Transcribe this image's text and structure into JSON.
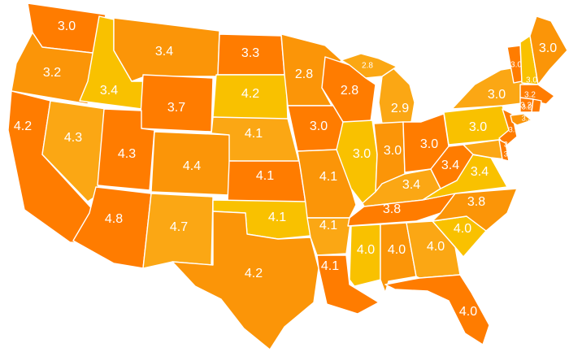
{
  "palette": {
    "tier_1": "#f9c100",
    "tier_2": "#fba714",
    "tier_3": "#fb9508",
    "tier_4": "#ff7c00"
  },
  "states": [
    {
      "id": "wa",
      "value": "3.0",
      "tier": "tier_4"
    },
    {
      "id": "or",
      "value": "3.2",
      "tier": "tier_3"
    },
    {
      "id": "ca",
      "value": "4.2",
      "tier": "tier_4"
    },
    {
      "id": "id",
      "value": "3.4",
      "tier": "tier_1"
    },
    {
      "id": "nv",
      "value": "4.3",
      "tier": "tier_2"
    },
    {
      "id": "mt",
      "value": "3.4",
      "tier": "tier_3"
    },
    {
      "id": "wy",
      "value": "3.7",
      "tier": "tier_4"
    },
    {
      "id": "ut",
      "value": "4.3",
      "tier": "tier_4"
    },
    {
      "id": "co",
      "value": "4.4",
      "tier": "tier_3"
    },
    {
      "id": "az",
      "value": "4.8",
      "tier": "tier_4"
    },
    {
      "id": "nm",
      "value": "4.7",
      "tier": "tier_2"
    },
    {
      "id": "nd",
      "value": "3.3",
      "tier": "tier_4"
    },
    {
      "id": "sd",
      "value": "4.2",
      "tier": "tier_1"
    },
    {
      "id": "ne",
      "value": "4.1",
      "tier": "tier_2"
    },
    {
      "id": "ks",
      "value": "4.1",
      "tier": "tier_4"
    },
    {
      "id": "ok",
      "value": "4.1",
      "tier": "tier_1"
    },
    {
      "id": "tx",
      "value": "4.2",
      "tier": "tier_3"
    },
    {
      "id": "mn",
      "value": "2.8",
      "tier": "tier_3"
    },
    {
      "id": "ia",
      "value": "3.0",
      "tier": "tier_4"
    },
    {
      "id": "mo",
      "value": "4.1",
      "tier": "tier_3"
    },
    {
      "id": "ar",
      "value": "4.1",
      "tier": "tier_2"
    },
    {
      "id": "la",
      "value": "4.1",
      "tier": "tier_4"
    },
    {
      "id": "wi",
      "value": "2.8",
      "tier": "tier_4"
    },
    {
      "id": "il",
      "value": "3.0",
      "tier": "tier_1"
    },
    {
      "id": "mi",
      "value": "2.9",
      "tier": "tier_2"
    },
    {
      "id": "in",
      "value": "3.0",
      "tier": "tier_3"
    },
    {
      "id": "oh",
      "value": "3.0",
      "tier": "tier_4"
    },
    {
      "id": "ky",
      "value": "3.4",
      "tier": "tier_2"
    },
    {
      "id": "tn",
      "value": "3.8",
      "tier": "tier_4"
    },
    {
      "id": "ms",
      "value": "4.0",
      "tier": "tier_1"
    },
    {
      "id": "al",
      "value": "4.0",
      "tier": "tier_3"
    },
    {
      "id": "ga",
      "value": "4.0",
      "tier": "tier_2"
    },
    {
      "id": "fl",
      "value": "4.0",
      "tier": "tier_4"
    },
    {
      "id": "sc",
      "value": "4.0",
      "tier": "tier_1"
    },
    {
      "id": "nc",
      "value": "3.8",
      "tier": "tier_3"
    },
    {
      "id": "va",
      "value": "3.4",
      "tier": "tier_1"
    },
    {
      "id": "wv",
      "value": "3.4",
      "tier": "tier_4"
    },
    {
      "id": "pa",
      "value": "3.0",
      "tier": "tier_1"
    },
    {
      "id": "ny",
      "value": "3.0",
      "tier": "tier_2"
    },
    {
      "id": "nj",
      "value": "3.3",
      "tier": "tier_4"
    },
    {
      "id": "md",
      "value": "3.4",
      "tier": "tier_2"
    },
    {
      "id": "de",
      "value": "3.4",
      "tier": "tier_4"
    },
    {
      "id": "vt",
      "value": "3.0",
      "tier": "tier_4"
    },
    {
      "id": "nh",
      "value": "3.0",
      "tier": "tier_1"
    },
    {
      "id": "me",
      "value": "3.0",
      "tier": "tier_3"
    },
    {
      "id": "ma",
      "value": "3.2",
      "tier": "tier_4"
    },
    {
      "id": "ct",
      "value": "3.2",
      "tier": "tier_4"
    },
    {
      "id": "ri",
      "value": "3.2",
      "tier": "tier_4"
    },
    {
      "id": "nyc",
      "value": "3.2",
      "tier": "tier_3"
    },
    {
      "id": "umi",
      "value": "2.8",
      "tier": "tier_2"
    }
  ]
}
